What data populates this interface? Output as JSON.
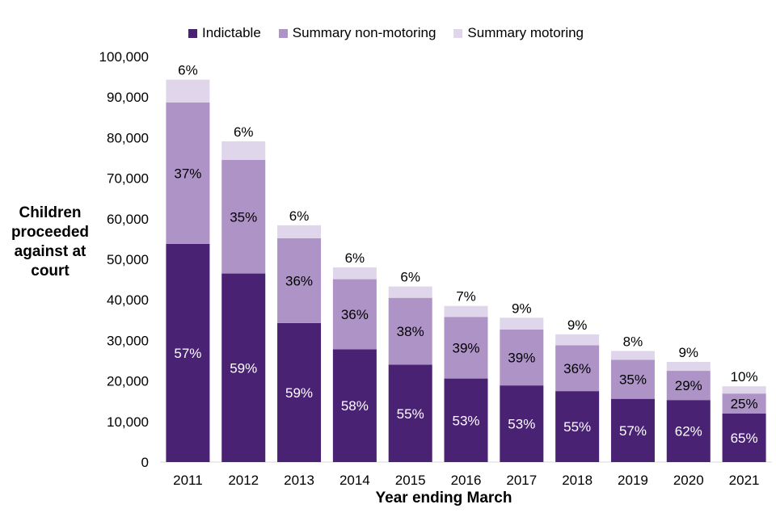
{
  "chart_data": {
    "type": "bar",
    "stacked": true,
    "xlabel": "Year ending March",
    "ylabel": "Children proceeded against at court",
    "ylim": [
      0,
      100000
    ],
    "yticks": [
      0,
      10000,
      20000,
      30000,
      40000,
      50000,
      60000,
      70000,
      80000,
      90000,
      100000
    ],
    "ytick_labels": [
      "0",
      "10,000",
      "20,000",
      "30,000",
      "40,000",
      "50,000",
      "60,000",
      "70,000",
      "80,000",
      "90,000",
      "100,000"
    ],
    "legend_position": "top",
    "grid": false,
    "categories": [
      "2011",
      "2012",
      "2013",
      "2014",
      "2015",
      "2016",
      "2017",
      "2018",
      "2019",
      "2020",
      "2021"
    ],
    "series": [
      {
        "name": "Indictable",
        "color": "#4a2274",
        "label_color": "#ffffff",
        "values": [
          53800,
          46500,
          34300,
          27800,
          24000,
          20600,
          18900,
          17500,
          15600,
          15300,
          12000
        ],
        "labels": [
          "57%",
          "59%",
          "59%",
          "58%",
          "55%",
          "53%",
          "53%",
          "55%",
          "57%",
          "62%",
          "65%"
        ]
      },
      {
        "name": "Summary non-motoring",
        "color": "#ae93c7",
        "label_color": "#000000",
        "values": [
          34900,
          28000,
          20900,
          17300,
          16500,
          15200,
          13800,
          11300,
          9600,
          7200,
          4900
        ],
        "labels": [
          "37%",
          "35%",
          "36%",
          "36%",
          "38%",
          "39%",
          "39%",
          "36%",
          "35%",
          "29%",
          "25%"
        ]
      },
      {
        "name": "Summary motoring",
        "color": "#e0d6ec",
        "label_color": "#000000",
        "values": [
          5600,
          4600,
          3200,
          2900,
          2800,
          2700,
          2900,
          2700,
          2200,
          2200,
          1800
        ],
        "labels": [
          "6%",
          "6%",
          "6%",
          "6%",
          "6%",
          "7%",
          "9%",
          "9%",
          "8%",
          "9%",
          "10%"
        ]
      }
    ]
  }
}
